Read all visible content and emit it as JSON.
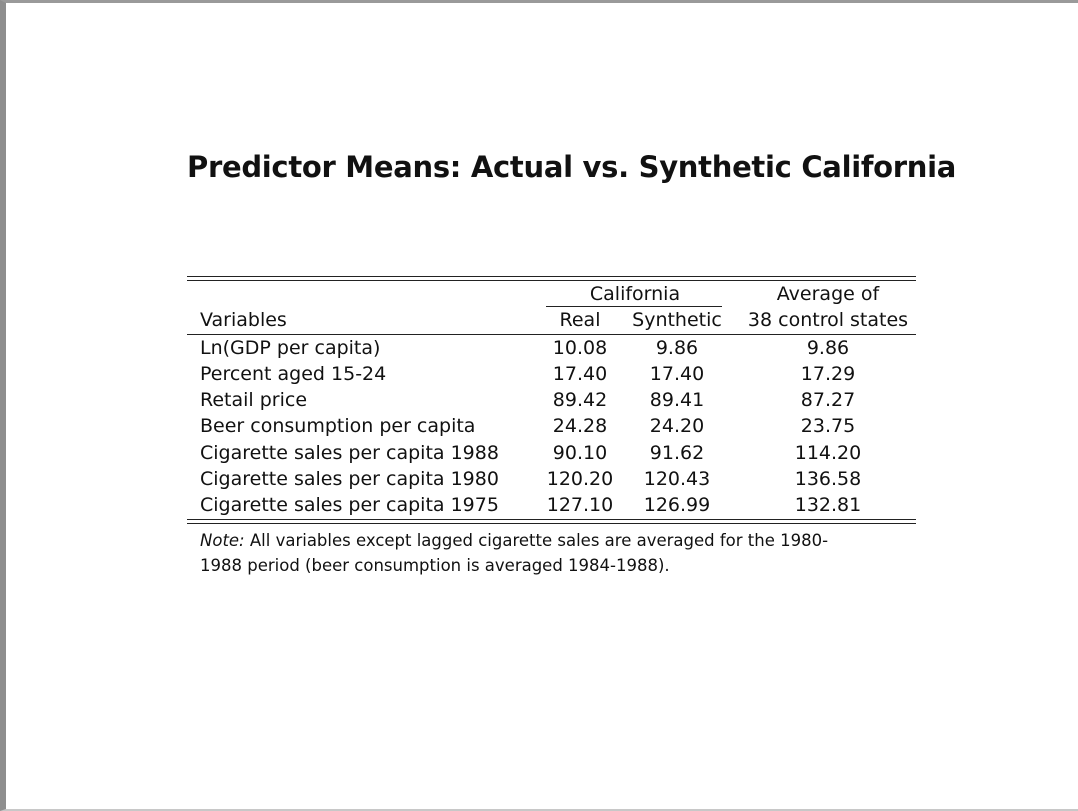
{
  "title": "Predictor Means: Actual vs. Synthetic California",
  "table": {
    "group_header_california": "California",
    "group_header_avg_line1": "Average of",
    "header": {
      "variables": "Variables",
      "real": "Real",
      "synthetic": "Synthetic",
      "avg": "38 control states"
    },
    "rows": [
      {
        "variable": "Ln(GDP per capita)",
        "real": "10.08",
        "synthetic": "9.86",
        "avg": "9.86"
      },
      {
        "variable": "Percent aged 15-24",
        "real": "17.40",
        "synthetic": "17.40",
        "avg": "17.29"
      },
      {
        "variable": "Retail price",
        "real": "89.42",
        "synthetic": "89.41",
        "avg": "87.27"
      },
      {
        "variable": "Beer consumption per capita",
        "real": "24.28",
        "synthetic": "24.20",
        "avg": "23.75"
      },
      {
        "variable": "Cigarette sales per capita 1988",
        "real": "90.10",
        "synthetic": "91.62",
        "avg": "114.20"
      },
      {
        "variable": "Cigarette sales per capita 1980",
        "real": "120.20",
        "synthetic": "120.43",
        "avg": "136.58"
      },
      {
        "variable": "Cigarette sales per capita 1975",
        "real": "127.10",
        "synthetic": "126.99",
        "avg": "132.81"
      }
    ]
  },
  "note": {
    "label": "Note:",
    "text": "All variables except lagged cigarette sales are averaged for the 1980-1988 period (beer consumption is averaged 1984-1988)."
  }
}
